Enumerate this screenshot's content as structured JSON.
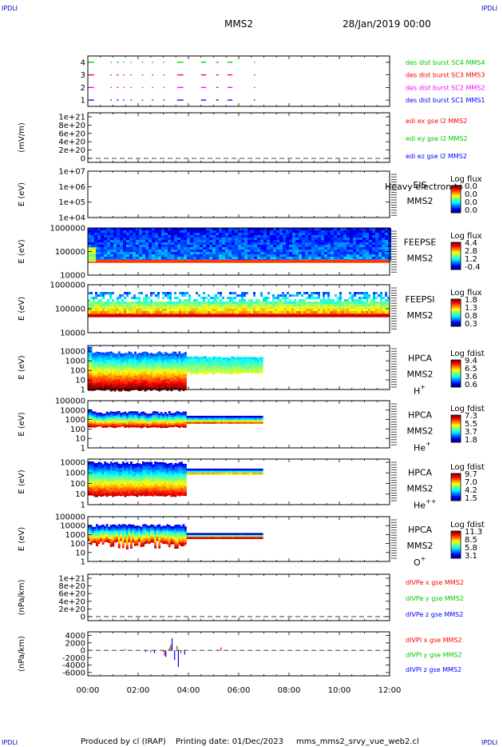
{
  "corner_label": "IPDLI",
  "header": {
    "spacecraft": "MMS2",
    "date": "28/Jan/2019 00:00"
  },
  "footer": {
    "producer": "Produced by cl (IRAP)",
    "printed": "Printing date: 01/Dec/2023",
    "script": "mms_mms2_srvy_vue_web2.cl"
  },
  "colors": {
    "mms1": "#0000ff",
    "mms2": "#ff00ff",
    "mms3": "#ff0000",
    "mms4": "#00c800",
    "x": "#ff0000",
    "y": "#00c800",
    "z": "#0000ff"
  },
  "chart_data": [
    {
      "type": "line",
      "panel": "burst-availability",
      "ylim": [
        0.5,
        4.5
      ],
      "y_ticks": [
        "1",
        "2",
        "3",
        "4"
      ],
      "series": [
        {
          "name": "des dist burst SC1 MMS1",
          "level": 1,
          "color": "#0000ff",
          "intervals": [
            [
              0.05,
              0.25
            ],
            [
              0.9,
              0.95
            ],
            [
              1.15,
              1.22
            ],
            [
              1.4,
              1.45
            ],
            [
              1.7,
              1.75
            ],
            [
              2.15,
              2.2
            ],
            [
              2.55,
              2.6
            ],
            [
              3.0,
              3.05
            ],
            [
              3.55,
              3.8
            ],
            [
              4.5,
              4.7
            ],
            [
              5.1,
              5.2
            ],
            [
              5.55,
              5.75
            ],
            [
              6.6,
              6.65
            ]
          ]
        },
        {
          "name": "des dist burst SC2 MMS2",
          "level": 2,
          "color": "#ff00ff",
          "intervals": [
            [
              0.05,
              0.25
            ],
            [
              0.9,
              0.95
            ],
            [
              1.15,
              1.22
            ],
            [
              1.4,
              1.45
            ],
            [
              1.7,
              1.75
            ],
            [
              2.15,
              2.2
            ],
            [
              2.55,
              2.6
            ],
            [
              3.0,
              3.05
            ],
            [
              3.55,
              3.8
            ],
            [
              4.5,
              4.7
            ],
            [
              5.1,
              5.2
            ],
            [
              5.55,
              5.75
            ],
            [
              6.6,
              6.65
            ]
          ]
        },
        {
          "name": "des dist burst SC3 MMS3",
          "level": 3,
          "color": "#ff0000",
          "intervals": [
            [
              0.05,
              0.25
            ],
            [
              0.9,
              0.95
            ],
            [
              1.15,
              1.22
            ],
            [
              1.4,
              1.45
            ],
            [
              1.7,
              1.75
            ],
            [
              2.15,
              2.2
            ],
            [
              2.55,
              2.6
            ],
            [
              3.0,
              3.05
            ],
            [
              3.55,
              3.8
            ],
            [
              4.5,
              4.7
            ],
            [
              5.1,
              5.2
            ],
            [
              5.55,
              5.75
            ],
            [
              6.6,
              6.65
            ]
          ]
        },
        {
          "name": "des dist burst SC4 MMS4",
          "level": 4,
          "color": "#00c800",
          "intervals": [
            [
              0.05,
              0.25
            ],
            [
              0.9,
              0.95
            ],
            [
              1.15,
              1.22
            ],
            [
              1.4,
              1.45
            ],
            [
              1.7,
              1.75
            ],
            [
              2.15,
              2.2
            ],
            [
              2.55,
              2.6
            ],
            [
              3.0,
              3.05
            ],
            [
              3.55,
              3.8
            ],
            [
              4.5,
              4.7
            ],
            [
              5.1,
              5.2
            ],
            [
              5.55,
              5.75
            ],
            [
              6.6,
              6.65
            ]
          ]
        }
      ]
    },
    {
      "type": "line",
      "panel": "edi-e-field",
      "ylabel": "(mV/m)",
      "y_ticks": [
        "1e+21",
        "8e+20",
        "6e+20",
        "4e+20",
        "2e+20",
        "0"
      ],
      "ylim": [
        0,
        1e+21
      ],
      "series": [
        {
          "name": "edi ex gse l2 MMS2",
          "color": "#ff0000"
        },
        {
          "name": "edi ey gse l2 MMS2",
          "color": "#00c800"
        },
        {
          "name": "edi ez gse l2 MMS2",
          "color": "#0000ff"
        }
      ]
    },
    {
      "type": "heatmap",
      "panel": "eis",
      "ylabel": "E (eV)",
      "y_ticks": [
        "1e+07",
        "1e+06",
        "1e+05",
        "1e+04"
      ],
      "ylim": [
        10000,
        10000000
      ],
      "instrument": "EIS",
      "extra_label": "Heavy electron to",
      "spacecraft": "MMS2",
      "colorbar": {
        "title": "Log flux",
        "ticks": [
          "0.0",
          "0.0",
          "0.0",
          "0.0"
        ]
      }
    },
    {
      "type": "heatmap",
      "panel": "feeps-electron",
      "ylabel": "E (eV)",
      "y_ticks": [
        "1000000",
        "100000",
        "10000"
      ],
      "ylim": [
        10000,
        1000000
      ],
      "instrument": "FEEPSE",
      "spacecraft": "MMS2",
      "colorbar": {
        "title": "Log flux",
        "ticks": [
          "4.4",
          "2.8",
          "1.2",
          "-0.4"
        ]
      },
      "x_extent_hours": [
        0,
        12
      ]
    },
    {
      "type": "heatmap",
      "panel": "feeps-ion",
      "ylabel": "E (eV)",
      "y_ticks": [
        "1000000",
        "100000",
        "10000"
      ],
      "ylim": [
        10000,
        1000000
      ],
      "instrument": "FEEPSI",
      "spacecraft": "MMS2",
      "colorbar": {
        "title": "Log flux",
        "ticks": [
          "1.8",
          "1.3",
          "0.8",
          "0.3"
        ]
      },
      "x_extent_hours": [
        0,
        12
      ]
    },
    {
      "type": "heatmap",
      "panel": "hpca-h",
      "ylabel": "E (eV)",
      "y_ticks": [
        "10000",
        "1000",
        "100",
        "10",
        "1"
      ],
      "ylim": [
        1,
        40000
      ],
      "instrument": "HPCA",
      "spacecraft": "MMS2",
      "species": "H",
      "species_charge": "+",
      "colorbar": {
        "title": "Log fdist",
        "ticks": [
          "9.4",
          "6.5",
          "3.6",
          "0.6"
        ]
      },
      "x_extent_hours": [
        0,
        6.9
      ]
    },
    {
      "type": "heatmap",
      "panel": "hpca-he",
      "ylabel": "E (eV)",
      "y_ticks": [
        "100000",
        "10000",
        "1000",
        "100",
        "10",
        "1"
      ],
      "ylim": [
        1,
        100000
      ],
      "instrument": "HPCA",
      "spacecraft": "MMS2",
      "species": "He",
      "species_charge": "+",
      "colorbar": {
        "title": "Log fdist",
        "ticks": [
          "7.3",
          "5.5",
          "3.7",
          "1.8"
        ]
      },
      "x_extent_hours": [
        0,
        6.9
      ]
    },
    {
      "type": "heatmap",
      "panel": "hpca-he2",
      "ylabel": "E (eV)",
      "y_ticks": [
        "10000",
        "1000",
        "100",
        "10",
        "1"
      ],
      "ylim": [
        1,
        20000
      ],
      "instrument": "HPCA",
      "spacecraft": "MMS2",
      "species": "He",
      "species_charge": "++",
      "colorbar": {
        "title": "Log fdist",
        "ticks": [
          "9.7",
          "7.0",
          "4.2",
          "1.5"
        ]
      },
      "x_extent_hours": [
        0,
        6.9
      ]
    },
    {
      "type": "heatmap",
      "panel": "hpca-o",
      "ylabel": "E (eV)",
      "y_ticks": [
        "100000",
        "10000",
        "1000",
        "100",
        "10",
        "1"
      ],
      "ylim": [
        1,
        100000
      ],
      "instrument": "HPCA",
      "spacecraft": "MMS2",
      "species": "O",
      "species_charge": "+",
      "colorbar": {
        "title": "Log fdist",
        "ticks": [
          "11.3",
          "8.5",
          "5.8",
          "3.1"
        ]
      },
      "x_extent_hours": [
        0,
        6.9
      ]
    },
    {
      "type": "line",
      "panel": "div-pe",
      "ylabel": "(nPa/km)",
      "y_ticks": [
        "1e+21",
        "8e+20",
        "6e+20",
        "4e+20",
        "2e+20",
        "0"
      ],
      "ylim": [
        0,
        1e+21
      ],
      "series": [
        {
          "name": "dIVPe x gse MMS2",
          "color": "#ff0000"
        },
        {
          "name": "dIVPe y gse MMS2",
          "color": "#00c800"
        },
        {
          "name": "dIVPe z gse MMS2",
          "color": "#0000ff"
        }
      ]
    },
    {
      "type": "line",
      "panel": "div-pi",
      "ylabel": "(nPa/km)",
      "y_ticks": [
        "4000",
        "2000",
        "0",
        "-2000",
        "-4000",
        "-6000"
      ],
      "ylim": [
        -6900,
        5000
      ],
      "series": [
        {
          "name": "dIVPI x gse MMS2",
          "color": "#ff0000",
          "spikes": [
            [
              1.5,
              300
            ],
            [
              2.5,
              -600
            ],
            [
              3.05,
              -1500
            ],
            [
              3.3,
              1500
            ],
            [
              3.55,
              1200
            ],
            [
              3.7,
              -800
            ],
            [
              5.3,
              800
            ]
          ]
        },
        {
          "name": "dIVPI y gse MMS2",
          "color": "#00c800",
          "spikes": [
            [
              2.55,
              200
            ],
            [
              3.0,
              -400
            ],
            [
              3.25,
              800
            ],
            [
              3.55,
              600
            ],
            [
              3.75,
              -300
            ]
          ]
        },
        {
          "name": "dIVPI z gse MMS2",
          "color": "#0000ff",
          "spikes": [
            [
              2.3,
              -400
            ],
            [
              2.65,
              -800
            ],
            [
              3.1,
              -1800
            ],
            [
              3.35,
              3300
            ],
            [
              3.45,
              -2600
            ],
            [
              3.6,
              -4500
            ],
            [
              3.85,
              -1200
            ]
          ]
        }
      ]
    }
  ],
  "time_axis": {
    "ticks": [
      "00:00",
      "02:00",
      "04:00",
      "06:00",
      "08:00",
      "10:00",
      "12:00"
    ],
    "range_hours": [
      0,
      12
    ]
  }
}
